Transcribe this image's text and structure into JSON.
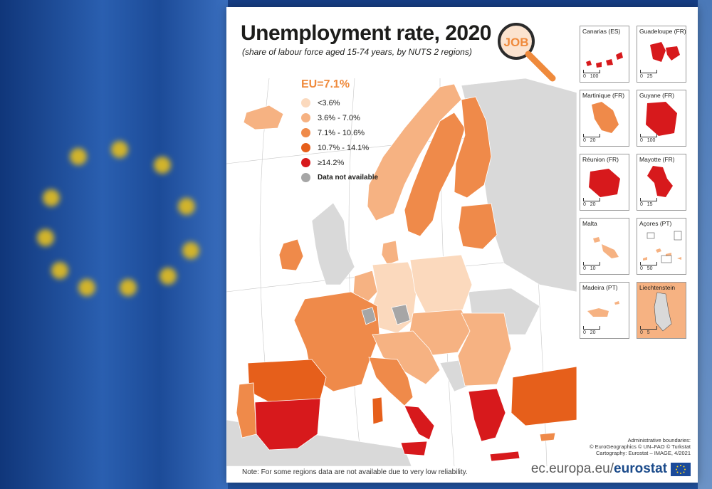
{
  "title": "Unemployment rate, 2020",
  "subtitle": "(share of labour force aged 15-74 years, by NUTS 2 regions)",
  "job_badge": "JOB",
  "legend": {
    "eu_rate": "EU=7.1%",
    "items": [
      {
        "label": "<3.6%",
        "color": "#fbd9bd"
      },
      {
        "label": "3.6% - 7.0%",
        "color": "#f6b282"
      },
      {
        "label": "7.1% - 10.6%",
        "color": "#ef8a4a"
      },
      {
        "label": "10.7% - 14.1%",
        "color": "#e65f1b"
      },
      {
        "label": "≥14.2%",
        "color": "#d7191c"
      },
      {
        "label": "Data not available",
        "color": "#a6a6a6"
      }
    ]
  },
  "insets": [
    {
      "name": "Canarias (ES)",
      "scale": [
        "0",
        "100"
      ],
      "color": "#d7191c"
    },
    {
      "name": "Guadeloupe (FR)",
      "scale": [
        "0",
        "25"
      ],
      "color": "#d7191c"
    },
    {
      "name": "Martinique (FR)",
      "scale": [
        "0",
        "20"
      ],
      "color": "#ef8a4a"
    },
    {
      "name": "Guyane (FR)",
      "scale": [
        "0",
        "100"
      ],
      "color": "#d7191c"
    },
    {
      "name": "Réunion (FR)",
      "scale": [
        "0",
        "20"
      ],
      "color": "#d7191c"
    },
    {
      "name": "Mayotte (FR)",
      "scale": [
        "0",
        "15"
      ],
      "color": "#d7191c"
    },
    {
      "name": "Malta",
      "scale": [
        "0",
        "10"
      ],
      "color": "#f6b282"
    },
    {
      "name": "Açores (PT)",
      "scale": [
        "0",
        "50"
      ],
      "color": "#f6b282"
    },
    {
      "name": "Madeira (PT)",
      "scale": [
        "0",
        "20"
      ],
      "color": "#f6b282"
    },
    {
      "name": "Liechtenstein",
      "scale": [
        "0",
        "5"
      ],
      "color": "#f6b282"
    }
  ],
  "credits": {
    "line1": "Administrative boundaries:",
    "line2": "© EuroGeographics © UN–FAO © Turkstat",
    "line3": "Cartography: Eurostat – IMAGE, 4/2021"
  },
  "note": "Note: For some regions data are not available due to very low reliability.",
  "brand": {
    "url": "ec.europa.eu/",
    "name": "eurostat"
  },
  "colors": {
    "class1": "#fbd9bd",
    "class2": "#f6b282",
    "class3": "#ef8a4a",
    "class4": "#e65f1b",
    "class5": "#d7191c",
    "na": "#a6a6a6",
    "non_eu": "#d9d9d9",
    "sea": "#ffffff"
  }
}
